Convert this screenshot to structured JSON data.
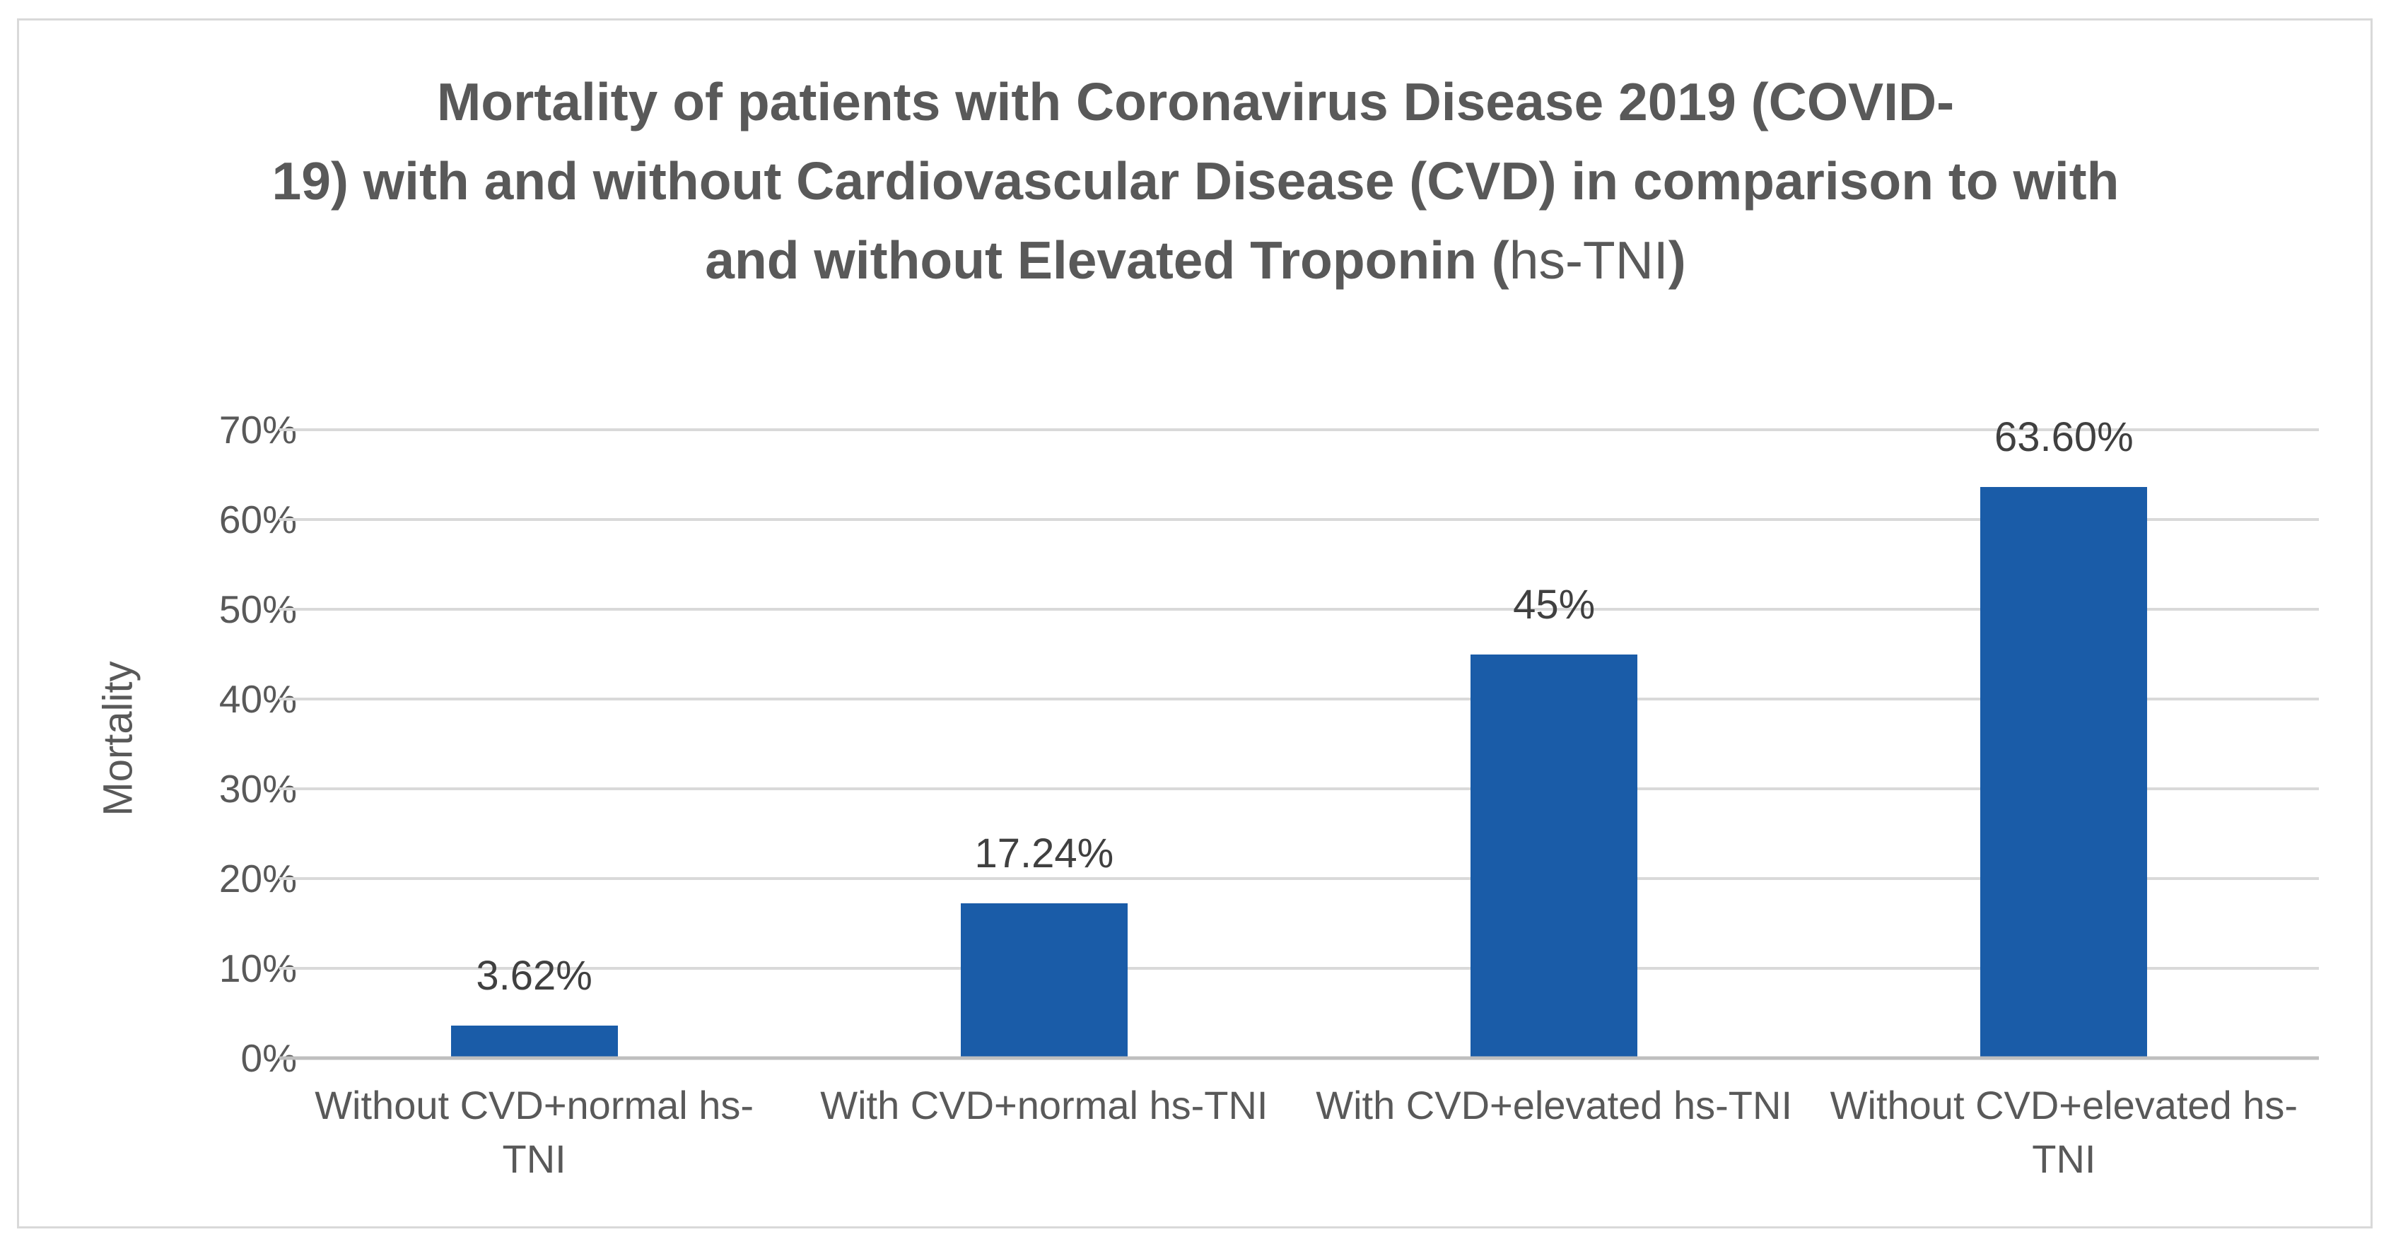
{
  "chart_data": {
    "type": "bar",
    "title": "Mortality of patients with Coronavirus Disease 2019 (COVID-19) with and without Cardiovascular Disease (CVD) in comparison to with and without Elevated Troponin (hs-TNI)",
    "title_lines": {
      "line1": "Mortality of patients with Coronavirus Disease 2019 (COVID-",
      "line2": "19) with and without Cardiovascular Disease (CVD) in comparison to with",
      "line3_bold_prefix": "and without Elevated Troponin (",
      "line3_light": "hs-TNI",
      "line3_bold_suffix": ")"
    },
    "categories": [
      "Without CVD+normal hs-TNI",
      "With CVD+normal hs-TNI",
      "With CVD+elevated hs-TNI",
      "Without CVD+elevated hs-TNI"
    ],
    "category_display_lines": [
      [
        "Without CVD+normal hs-",
        "TNI"
      ],
      [
        "With CVD+normal hs-TNI"
      ],
      [
        "With CVD+elevated hs-TNI"
      ],
      [
        "Without CVD+elevated hs-",
        "TNI"
      ]
    ],
    "values_percent": [
      3.62,
      17.24,
      45,
      63.6
    ],
    "data_labels": [
      "3.62%",
      "17.24%",
      "45%",
      "63.60%"
    ],
    "xlabel": "",
    "ylabel": "Mortality",
    "yticks": [
      "0%",
      "10%",
      "20%",
      "30%",
      "40%",
      "50%",
      "60%",
      "70%"
    ],
    "ylim": [
      0,
      70
    ],
    "grid": true,
    "legend": "none",
    "colors": {
      "bar": "#1A5CA8",
      "title_text": "#595959",
      "axis_text": "#595959",
      "data_label_text": "#404040",
      "gridline": "#D9D9D9",
      "axis_line": "#BFBFBF",
      "frame_border": "#D9D9D9",
      "background": "#FFFFFF"
    }
  }
}
